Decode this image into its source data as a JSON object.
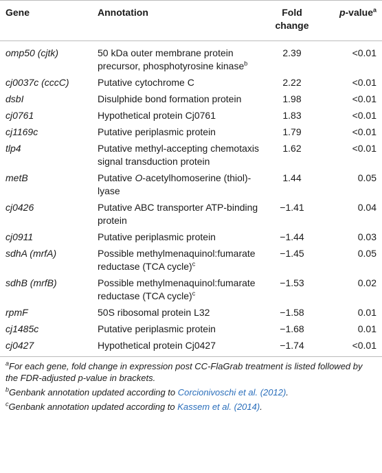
{
  "table": {
    "header": {
      "gene": "Gene",
      "annotation": "Annotation",
      "fold": "Fold change",
      "p_value": [
        {
          "text": "p",
          "style": "italic"
        },
        "-value"
      ],
      "p_value_note": "a"
    },
    "rows": [
      {
        "gene": "omp50 (cjtk)",
        "annotation": [
          "50 kDa outer membrane protein precursor, phosphotyrosine kinase"
        ],
        "note": "b",
        "fold": "2.39",
        "p": "<0.01"
      },
      {
        "gene": "cj0037c (cccC)",
        "annotation": [
          "Putative cytochrome C"
        ],
        "fold": "2.22",
        "p": "<0.01"
      },
      {
        "gene": "dsbI",
        "annotation": [
          "Disulphide bond formation protein"
        ],
        "fold": "1.98",
        "p": "<0.01"
      },
      {
        "gene": "cj0761",
        "annotation": [
          "Hypothetical protein Cj0761"
        ],
        "fold": "1.83",
        "p": "<0.01"
      },
      {
        "gene": "cj1169c",
        "annotation": [
          "Putative periplasmic protein"
        ],
        "fold": "1.79",
        "p": "<0.01"
      },
      {
        "gene": "tlp4",
        "annotation": [
          "Putative methyl-accepting chemotaxis signal transduction protein"
        ],
        "fold": "1.62",
        "p": "<0.01"
      },
      {
        "gene": "metB",
        "annotation": [
          "Putative ",
          {
            "text": "O",
            "style": "italic"
          },
          "-acetylhomoserine (thiol)-lyase"
        ],
        "fold": "1.44",
        "p": "0.05"
      },
      {
        "gene": "cj0426",
        "annotation": [
          "Putative ABC transporter ATP-binding protein"
        ],
        "fold": "−1.41",
        "p": "0.04"
      },
      {
        "gene": "cj0911",
        "annotation": [
          "Putative periplasmic protein"
        ],
        "fold": "−1.44",
        "p": "0.03"
      },
      {
        "gene": "sdhA (mrfA)",
        "annotation": [
          "Possible methylmenaquinol:fumarate reductase (TCA cycle)"
        ],
        "note": "c",
        "fold": "−1.45",
        "p": "0.05"
      },
      {
        "gene": "sdhB (mrfB)",
        "annotation": [
          "Possible methylmenaquinol:fumarate reductase (TCA cycle)"
        ],
        "note": "c",
        "fold": "−1.53",
        "p": "0.02"
      },
      {
        "gene": "rpmF",
        "annotation": [
          "50S ribosomal protein L32"
        ],
        "fold": "−1.58",
        "p": "0.01"
      },
      {
        "gene": "cj1485c",
        "annotation": [
          "Putative periplasmic protein"
        ],
        "fold": "−1.68",
        "p": "0.01"
      },
      {
        "gene": "cj0427",
        "annotation": [
          "Hypothetical protein Cj0427"
        ],
        "fold": "−1.74",
        "p": "<0.01"
      }
    ],
    "footnotes": [
      {
        "mark": "a",
        "text": [
          "For each gene, fold change in expression post CC-FlaGrab treatment is listed followed by the FDR-adjusted p-value in brackets."
        ]
      },
      {
        "mark": "b",
        "text": [
          "Genbank annotation updated according to ",
          {
            "text": "Corcionivoschi et al. (2012)",
            "style": "link"
          },
          "."
        ]
      },
      {
        "mark": "c",
        "text": [
          "Genbank annotation updated according to ",
          {
            "text": "Kassem et al. (2014)",
            "style": "link"
          },
          "."
        ]
      }
    ]
  }
}
